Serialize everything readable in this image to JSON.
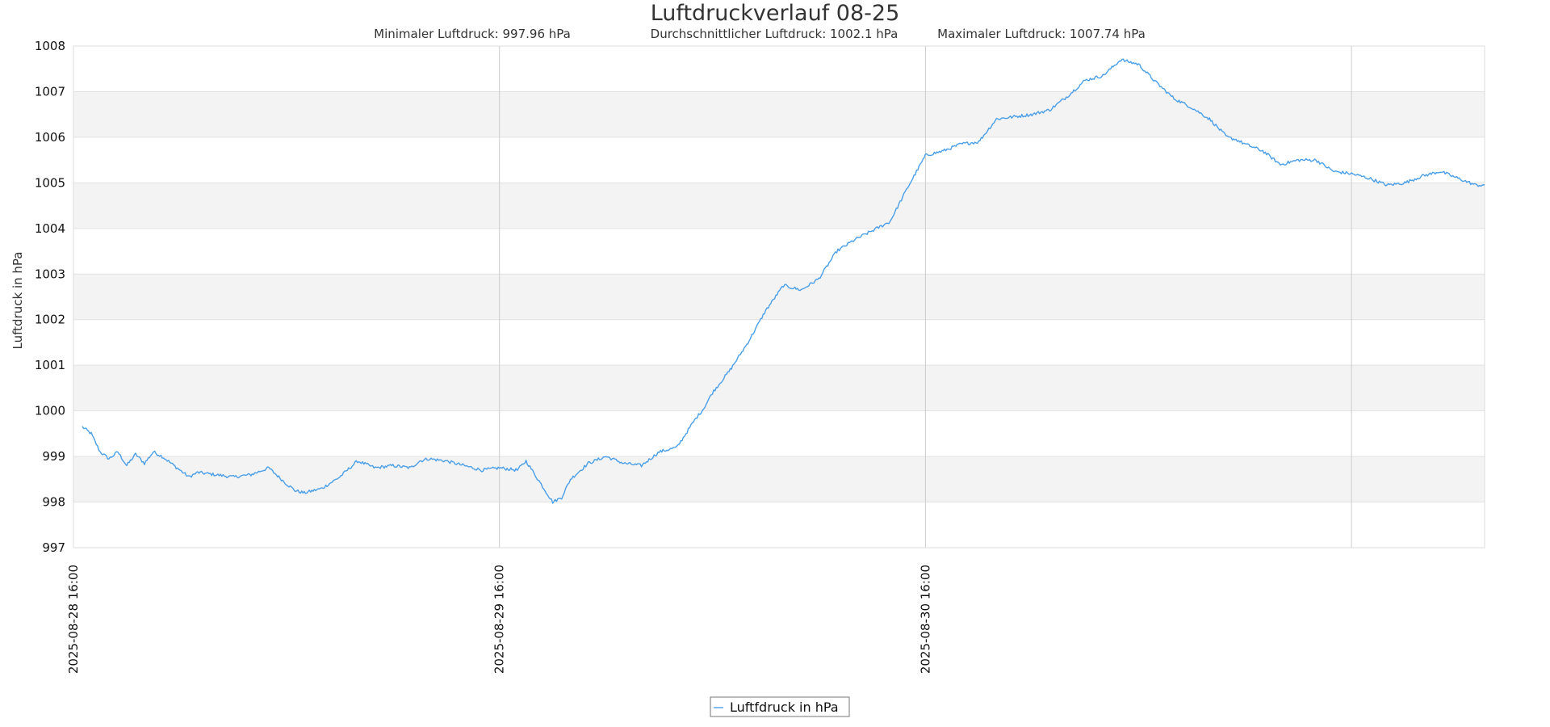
{
  "chart_data": {
    "type": "line",
    "title": "Luftdruckverlauf 08-25",
    "subtitle": {
      "min": "Minimaler Luftdruck: 997.96 hPa",
      "avg": "Durchschnittlicher Luftdruck: 1002.1 hPa",
      "max": "Maximaler Luftdruck: 1007.74 hPa"
    },
    "ylabel": "Luftdruck in hPa",
    "xlabel": "",
    "ylim": [
      997,
      1008
    ],
    "yticks": [
      997,
      998,
      999,
      1000,
      1001,
      1002,
      1003,
      1004,
      1005,
      1006,
      1007,
      1008
    ],
    "xlim": [
      0,
      79.5
    ],
    "xticks": [
      {
        "x": 0,
        "label": "2025-08-28 16:00"
      },
      {
        "x": 24,
        "label": "2025-08-29 16:00"
      },
      {
        "x": 48,
        "label": "2025-08-30 16:00"
      }
    ],
    "vgrid_x": [
      24,
      48,
      72
    ],
    "grid": "horizontal bands + vertical lines",
    "legend": {
      "position": "bottom-center",
      "entries": [
        "Luftfdruck in hPa"
      ]
    },
    "series": [
      {
        "name": "Luftfdruck in hPa",
        "color": "#4a9fe8",
        "x": [
          0.5,
          1,
          1.5,
          2,
          2.5,
          3,
          3.5,
          4,
          4.5,
          5,
          6,
          6.5,
          7,
          8,
          9,
          10,
          11,
          12,
          12.5,
          13,
          14,
          15,
          16,
          17,
          18,
          19,
          19.5,
          20,
          21,
          22,
          23,
          24,
          25,
          25.5,
          26,
          26.5,
          27,
          27.5,
          28,
          29,
          30,
          31,
          32,
          33,
          34,
          35,
          35.5,
          36,
          37,
          38,
          39,
          40,
          41,
          42,
          43,
          44,
          45,
          46,
          47,
          48,
          49,
          50,
          51,
          52,
          53,
          54,
          55,
          56,
          57,
          58,
          59,
          60,
          61,
          62,
          63,
          64,
          65,
          65.5,
          66,
          67,
          67.5,
          68,
          69,
          70,
          71,
          72,
          73,
          74,
          75,
          76,
          77,
          78,
          79,
          79.5
        ],
        "values": [
          999.65,
          999.5,
          999.1,
          998.95,
          999.1,
          998.8,
          999.05,
          998.85,
          999.1,
          999.0,
          998.7,
          998.55,
          998.65,
          998.6,
          998.55,
          998.6,
          998.75,
          998.4,
          998.25,
          998.2,
          998.3,
          998.55,
          998.9,
          998.75,
          998.8,
          998.75,
          998.9,
          998.95,
          998.9,
          998.8,
          998.7,
          998.75,
          998.7,
          998.9,
          998.6,
          998.3,
          998.0,
          998.1,
          998.5,
          998.85,
          999.0,
          998.85,
          998.8,
          999.1,
          999.2,
          999.8,
          1000.05,
          1000.4,
          1000.9,
          1001.5,
          1002.2,
          1002.75,
          1002.65,
          1002.9,
          1003.5,
          1003.75,
          1003.95,
          1004.15,
          1004.9,
          1005.6,
          1005.7,
          1005.85,
          1005.9,
          1006.4,
          1006.45,
          1006.5,
          1006.6,
          1006.9,
          1007.25,
          1007.35,
          1007.7,
          1007.6,
          1007.2,
          1006.85,
          1006.65,
          1006.4,
          1006.0,
          1005.95,
          1005.85,
          1005.7,
          1005.55,
          1005.4,
          1005.5,
          1005.5,
          1005.25,
          1005.2,
          1005.1,
          1004.95,
          1005.0,
          1005.15,
          1005.25,
          1005.1,
          1004.95,
          1004.95
        ]
      }
    ]
  }
}
